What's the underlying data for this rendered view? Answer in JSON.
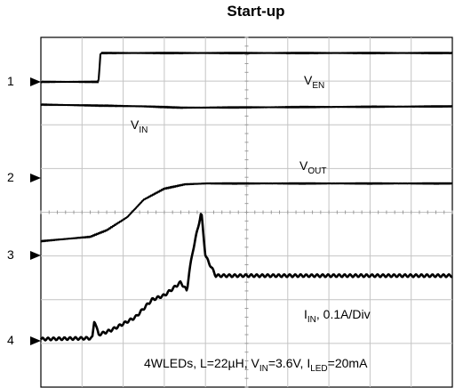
{
  "chart_data": {
    "type": "line",
    "title": "Start-up",
    "condition": {
      "text": "4WLEDs, L=22µH, V",
      "sub1": "IN",
      "mid": "=3.6V, I",
      "sub2": "LED",
      "end": "=20mA"
    },
    "channel_markers": [
      "1",
      "2",
      "3",
      "4"
    ],
    "grid": true,
    "divisions": {
      "x": 10,
      "y": 8
    },
    "series": [
      {
        "name": "V_EN",
        "label": {
          "main": "V",
          "sub": "EN"
        },
        "channel": "1",
        "x": [
          0,
          1.4,
          1.45,
          10
        ],
        "y": [
          0,
          0,
          0.66,
          0.66
        ]
      },
      {
        "name": "V_IN",
        "label": {
          "main": "V",
          "sub": "IN"
        },
        "channel": "1",
        "x": [
          0,
          2.5,
          3.4,
          10
        ],
        "y": [
          -0.52,
          -0.56,
          -0.59,
          -0.56
        ]
      },
      {
        "name": "V_OUT",
        "label": {
          "main": "V",
          "sub": "OUT"
        },
        "channel": "3",
        "x": [
          0,
          1.2,
          1.6,
          2.1,
          2.5,
          3.0,
          3.5,
          4.0,
          10
        ],
        "y": [
          0,
          0.1,
          0.25,
          0.55,
          0.95,
          1.2,
          1.3,
          1.32,
          1.32
        ]
      },
      {
        "name": "I_IN",
        "label": {
          "main": "I",
          "sub": "IN",
          "suffix": ", 0.1A/Div"
        },
        "channel": "4",
        "x": [
          0,
          1.25,
          1.3,
          1.4,
          1.7,
          2.3,
          2.7,
          3.0,
          3.4,
          3.55,
          3.6,
          3.7,
          3.9,
          4.0,
          4.25,
          10
        ],
        "y": [
          0,
          0.02,
          0.45,
          0.1,
          0.2,
          0.5,
          0.9,
          1.0,
          1.3,
          1.1,
          1.5,
          2.05,
          2.9,
          1.9,
          1.45,
          1.45
        ]
      }
    ]
  }
}
